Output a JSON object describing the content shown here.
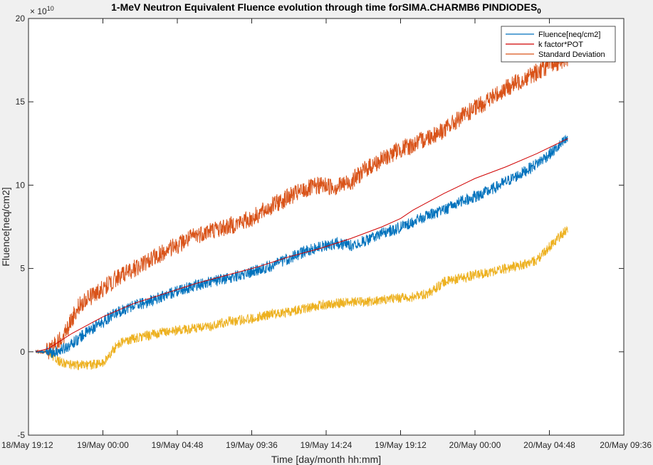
{
  "chart_data": {
    "type": "line",
    "title": "1-MeV Neutron Equivalent Fluence evolution through time forSIMA.CHARMB6 PINDIODES",
    "title_subscript": "0",
    "xlabel": "Time [day/month hh:mm]",
    "ylabel": "Fluence[neq/cm2]",
    "y_exponent_label": "× 10",
    "y_exponent": "10",
    "grid": false,
    "legend_position": "top-right",
    "xlim": [
      "18/May 19:12",
      "20/May 09:36"
    ],
    "x_ticks": [
      "18/May 19:12",
      "19/May 00:00",
      "19/May 04:48",
      "19/May 09:36",
      "19/May 14:24",
      "19/May 19:12",
      "20/May 00:00",
      "20/May 04:48",
      "20/May 09:36"
    ],
    "ylim": [
      -5,
      20
    ],
    "y_ticks": [
      "-5",
      "0",
      "5",
      "10",
      "15",
      "20"
    ],
    "series": [
      {
        "name": "Fluence[neq/cm2]",
        "color": "#0072BD",
        "noise": 0.35,
        "x": [
          "18/May 19:40",
          "18/May 20:30",
          "18/May 21:00",
          "18/May 21:30",
          "18/May 22:00",
          "18/May 23:00",
          "19/May 00:00",
          "19/May 01:00",
          "19/May 02:00",
          "19/May 03:00",
          "19/May 04:00",
          "19/May 05:00",
          "19/May 06:00",
          "19/May 07:00",
          "19/May 08:00",
          "19/May 09:36",
          "19/May 11:00",
          "19/May 12:00",
          "19/May 13:00",
          "19/May 14:00",
          "19/May 15:00",
          "19/May 16:00",
          "19/May 17:00",
          "19/May 18:00",
          "19/May 19:00",
          "19/May 20:00",
          "19/May 21:00",
          "19/May 22:00",
          "19/May 23:00",
          "20/May 00:00",
          "20/May 01:00",
          "20/May 02:00",
          "20/May 03:00",
          "20/May 04:00",
          "20/May 05:00",
          "20/May 06:00"
        ],
        "y": [
          0,
          0,
          0,
          0.2,
          0.5,
          1.2,
          1.8,
          2.4,
          2.8,
          3.0,
          3.4,
          3.7,
          4.0,
          4.2,
          4.4,
          4.8,
          5.2,
          5.6,
          6.0,
          6.3,
          6.5,
          6.4,
          6.7,
          7.1,
          7.4,
          7.8,
          8.2,
          8.5,
          9.0,
          9.3,
          9.7,
          10.2,
          10.7,
          11.3,
          12.0,
          12.8
        ]
      },
      {
        "name": "k factor*POT",
        "color": "#D00000",
        "noise": 0,
        "x": [
          "18/May 19:40",
          "18/May 20:30",
          "18/May 21:00",
          "18/May 22:00",
          "18/May 23:00",
          "19/May 00:00",
          "19/May 02:00",
          "19/May 04:00",
          "19/May 06:00",
          "19/May 08:00",
          "19/May 10:00",
          "19/May 12:00",
          "19/May 14:00",
          "19/May 16:00",
          "19/May 18:00",
          "19/May 19:12",
          "19/May 20:00",
          "19/May 22:00",
          "20/May 00:00",
          "20/May 02:00",
          "20/May 04:00",
          "20/May 06:00"
        ],
        "y": [
          0,
          0.2,
          0.5,
          1.1,
          1.6,
          2.1,
          2.9,
          3.5,
          4.1,
          4.6,
          5.1,
          5.7,
          6.2,
          6.8,
          7.5,
          8.0,
          8.5,
          9.5,
          10.4,
          11.1,
          11.9,
          12.8
        ]
      },
      {
        "name": "Standard Deviation",
        "color": "#D95319",
        "noise": 0.55,
        "x": [
          "18/May 19:40",
          "18/May 20:30",
          "18/May 21:00",
          "18/May 21:30",
          "18/May 22:00",
          "18/May 22:30",
          "18/May 23:00",
          "19/May 00:00",
          "19/May 01:00",
          "19/May 02:00",
          "19/May 03:00",
          "19/May 04:00",
          "19/May 05:00",
          "19/May 06:00",
          "19/May 07:00",
          "19/May 08:00",
          "19/May 09:36",
          "19/May 11:00",
          "19/May 12:00",
          "19/May 13:00",
          "19/May 14:00",
          "19/May 15:00",
          "19/May 16:00",
          "19/May 17:00",
          "19/May 18:00",
          "19/May 19:00",
          "19/May 20:00",
          "19/May 21:00",
          "19/May 22:00",
          "19/May 23:00",
          "20/May 00:00",
          "20/May 01:00",
          "20/May 02:00",
          "20/May 03:00",
          "20/May 04:00",
          "20/May 05:00",
          "20/May 06:00"
        ],
        "y": [
          0,
          0,
          0.5,
          1.0,
          2.0,
          2.8,
          3.2,
          3.8,
          4.5,
          5.0,
          5.5,
          6.0,
          6.5,
          7.0,
          7.3,
          7.5,
          8.0,
          8.8,
          9.3,
          9.7,
          10.0,
          9.9,
          10.2,
          11.0,
          11.5,
          12.1,
          12.4,
          12.9,
          13.3,
          14.0,
          14.6,
          15.2,
          15.8,
          16.3,
          16.8,
          17.3,
          17.6
        ]
      },
      {
        "name": "",
        "color": "#EDB120",
        "noise": 0.3,
        "x": [
          "18/May 19:40",
          "18/May 20:30",
          "18/May 21:00",
          "18/May 22:00",
          "18/May 23:00",
          "19/May 00:00",
          "19/May 01:00",
          "19/May 02:00",
          "19/May 03:00",
          "19/May 04:00",
          "19/May 05:00",
          "19/May 06:00",
          "19/May 07:00",
          "19/May 08:00",
          "19/May 09:36",
          "19/May 11:00",
          "19/May 12:00",
          "19/May 13:00",
          "19/May 14:00",
          "19/May 15:00",
          "19/May 16:00",
          "19/May 17:00",
          "19/May 18:00",
          "19/May 19:00",
          "19/May 20:00",
          "19/May 21:00",
          "19/May 22:00",
          "19/May 23:00",
          "20/May 00:00",
          "20/May 01:00",
          "20/May 02:00",
          "20/May 03:00",
          "20/May 04:00",
          "20/May 05:00",
          "20/May 06:00"
        ],
        "y": [
          0,
          0,
          -0.5,
          -0.8,
          -0.8,
          -0.7,
          0.5,
          0.8,
          1.0,
          1.2,
          1.3,
          1.4,
          1.5,
          1.8,
          2.0,
          2.3,
          2.4,
          2.6,
          2.8,
          2.9,
          3.0,
          3.0,
          3.1,
          3.2,
          3.3,
          3.5,
          4.2,
          4.4,
          4.6,
          4.8,
          5.0,
          5.2,
          5.5,
          6.5,
          7.4
        ]
      }
    ]
  }
}
